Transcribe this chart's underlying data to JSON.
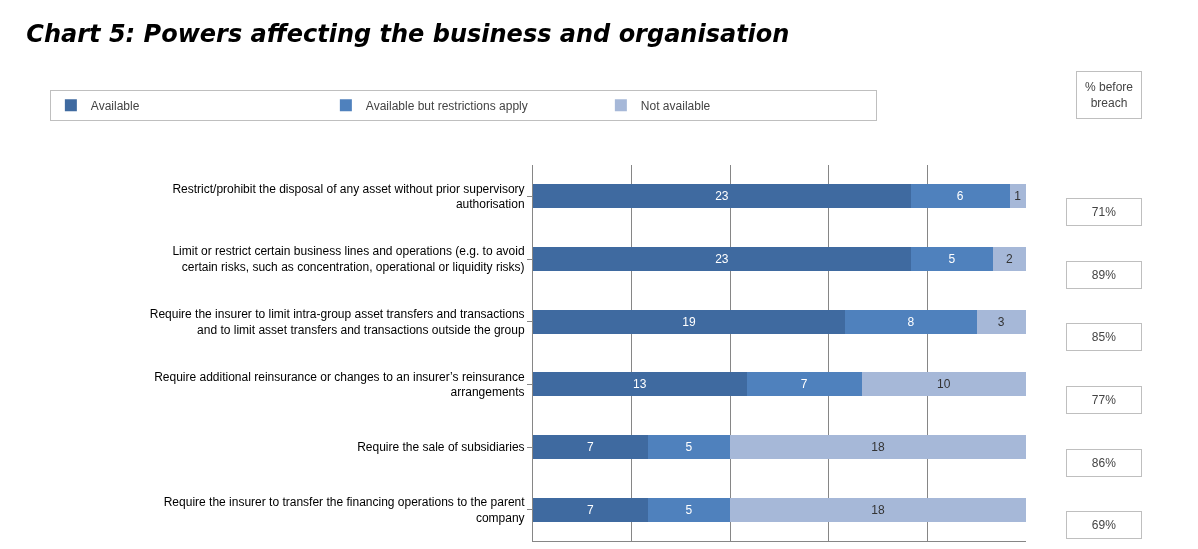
{
  "chart_data": {
    "type": "bar",
    "orientation": "horizontal",
    "stacked": true,
    "title": "Chart 5: Powers affecting the business and organisation",
    "categories": [
      "Restrict/prohibit the disposal of any asset without prior supervisory authorisation",
      "Limit or restrict certain business lines and operations (e.g. to avoid certain risks, such as concentration, operational or liquidity risks)",
      "Require the insurer to limit intra-group asset transfers and transactions and to limit asset transfers and transactions outside the group",
      "Require additional reinsurance or changes to an insurer’s reinsurance arrangements",
      "Require the sale of subsidiaries",
      "Require the insurer to transfer the financing operations to the parent company"
    ],
    "series": [
      {
        "name": "Available",
        "color": "#3f6aa0",
        "values": [
          23,
          23,
          19,
          13,
          7,
          7
        ]
      },
      {
        "name": "Available but restrictions apply",
        "color": "#4f81bd",
        "values": [
          6,
          5,
          8,
          7,
          5,
          5
        ]
      },
      {
        "name": "Not available",
        "color": "#a6b8d8",
        "values": [
          1,
          2,
          3,
          10,
          18,
          18
        ]
      }
    ],
    "xlim": [
      0,
      30
    ],
    "xticks": [
      0,
      6,
      12,
      18,
      24
    ],
    "grid": "x",
    "tick_labels": "y",
    "data_labels": true,
    "legend": "top",
    "annotations": [
      "% before breach",
      "71%",
      "89%",
      "85%",
      "77%",
      "86%",
      "69%"
    ]
  }
}
